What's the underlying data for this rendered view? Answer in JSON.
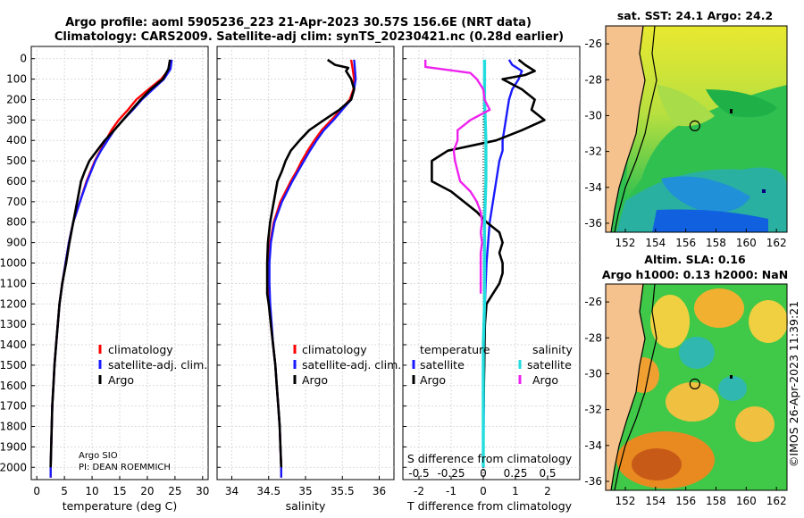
{
  "chart_data": {
    "type": "line",
    "title_line1": "Argo profile: aoml 5905236_223 21-Apr-2023 30.57S 156.6E (NRT data)",
    "title_line2": "Climatology: CARS2009. Satellite-adj clim: synTS_20230421.nc (0.28d earlier)",
    "depth_ticks": [
      "0",
      "100",
      "200",
      "300",
      "400",
      "500",
      "600",
      "700",
      "800",
      "900",
      "1000",
      "1100",
      "1200",
      "1300",
      "1400",
      "1500",
      "1600",
      "1700",
      "1800",
      "1900",
      "2000"
    ],
    "colors": {
      "red": "#ff0000",
      "blue": "#1a1aff",
      "black": "#000000",
      "cyan": "#22dddd",
      "magenta": "#ee22ee",
      "land": "#f5c28e"
    },
    "panels": [
      {
        "id": "temperature",
        "xlabel": "temperature (deg C)",
        "xlim": [
          -1,
          31
        ],
        "xticks": [
          "0",
          "5",
          "10",
          "15",
          "20",
          "25",
          "30"
        ],
        "xtick_values": [
          0,
          5,
          10,
          15,
          20,
          25,
          30
        ],
        "legend": [
          "climatology",
          "satellite-adj. clim.",
          "Argo"
        ],
        "note": [
          "Argo SIO",
          "PI: DEAN ROEMMICH"
        ],
        "series": [
          {
            "name": "climatology",
            "color": "red",
            "depth": [
              5,
              50,
              100,
              150,
              200,
              250,
              300,
              350,
              400,
              450,
              500,
              600,
              700,
              800,
              900,
              1000,
              1100,
              1200,
              1300,
              1400,
              1500,
              1600,
              1700,
              1800,
              1900,
              2000,
              2050
            ],
            "values": [
              24.3,
              24.0,
              22.5,
              20.2,
              18.0,
              16.5,
              14.8,
              13.5,
              12.5,
              11.5,
              10.5,
              9.0,
              7.8,
              6.6,
              5.8,
              5.2,
              4.6,
              4.1,
              3.8,
              3.5,
              3.2,
              3.0,
              2.8,
              2.7,
              2.6,
              2.5,
              2.5
            ]
          },
          {
            "name": "satellite-adj. clim.",
            "color": "blue",
            "depth": [
              5,
              50,
              100,
              150,
              200,
              250,
              300,
              350,
              400,
              450,
              500,
              600,
              700,
              800,
              900,
              1000,
              1100,
              1200,
              1300,
              1400,
              1500,
              1600,
              1700,
              1800,
              1900,
              2000,
              2050
            ],
            "values": [
              24.4,
              24.2,
              23.0,
              21.0,
              19.0,
              17.4,
              15.6,
              14.0,
              12.8,
              11.6,
              10.6,
              9.1,
              7.8,
              6.6,
              5.8,
              5.2,
              4.6,
              4.1,
              3.8,
              3.5,
              3.2,
              3.0,
              2.8,
              2.7,
              2.6,
              2.5,
              2.5
            ]
          },
          {
            "name": "Argo",
            "color": "black",
            "depth": [
              5,
              50,
              100,
              150,
              200,
              250,
              300,
              350,
              400,
              450,
              500,
              550,
              600,
              700,
              800,
              900,
              1000,
              1100,
              1200,
              1300,
              1400,
              1500,
              1600,
              1700,
              1800,
              1900,
              2000
            ],
            "values": [
              24.1,
              23.8,
              22.8,
              20.6,
              18.8,
              17.2,
              15.6,
              14.0,
              12.3,
              10.9,
              9.5,
              8.7,
              8.0,
              7.3,
              6.6,
              5.9,
              5.3,
              4.6,
              4.1,
              3.8,
              3.5,
              3.2,
              3.0,
              2.8,
              2.7,
              2.6,
              2.5
            ]
          }
        ]
      },
      {
        "id": "salinity",
        "xlabel": "salinity",
        "xlim": [
          33.8,
          36.2
        ],
        "xticks": [
          "34",
          "34.5",
          "35",
          "35.5",
          "36"
        ],
        "xtick_values": [
          34,
          34.5,
          35,
          35.5,
          36
        ],
        "legend": [
          "climatology",
          "satellite-adj. clim.",
          "Argo"
        ],
        "series": [
          {
            "name": "climatology",
            "color": "red",
            "depth": [
              5,
              50,
              100,
              150,
              200,
              250,
              300,
              350,
              400,
              450,
              500,
              550,
              600,
              700,
              800,
              900,
              1000,
              1100,
              1200,
              1300,
              1400,
              1500,
              1600,
              1700,
              1800,
              1900,
              2000,
              2050
            ],
            "values": [
              35.62,
              35.64,
              35.66,
              35.65,
              35.6,
              35.48,
              35.35,
              35.22,
              35.12,
              35.03,
              34.95,
              34.88,
              34.8,
              34.66,
              34.57,
              34.52,
              34.5,
              34.5,
              34.51,
              34.53,
              34.56,
              34.59,
              34.61,
              34.63,
              34.65,
              34.66,
              34.67,
              34.67
            ]
          },
          {
            "name": "satellite-adj. clim.",
            "color": "blue",
            "depth": [
              5,
              50,
              100,
              150,
              200,
              250,
              300,
              350,
              400,
              450,
              500,
              550,
              600,
              700,
              800,
              900,
              1000,
              1100,
              1200,
              1300,
              1400,
              1500,
              1600,
              1700,
              1800,
              1900,
              2000,
              2050
            ],
            "values": [
              35.66,
              35.67,
              35.68,
              35.66,
              35.62,
              35.5,
              35.38,
              35.25,
              35.15,
              35.06,
              34.98,
              34.9,
              34.82,
              34.68,
              34.58,
              34.53,
              34.51,
              34.51,
              34.52,
              34.54,
              34.56,
              34.59,
              34.61,
              34.63,
              34.65,
              34.66,
              34.67,
              34.67
            ]
          },
          {
            "name": "Argo",
            "color": "black",
            "depth": [
              5,
              30,
              45,
              60,
              100,
              150,
              200,
              250,
              300,
              350,
              400,
              450,
              500,
              550,
              600,
              700,
              800,
              900,
              1000,
              1100,
              1150,
              1200,
              1300,
              1400,
              1500,
              1600,
              1700,
              1800,
              1900,
              2000
            ],
            "values": [
              35.3,
              35.4,
              35.58,
              35.55,
              35.62,
              35.66,
              35.62,
              35.46,
              35.25,
              35.05,
              34.92,
              34.8,
              34.73,
              34.68,
              34.62,
              34.57,
              34.52,
              34.49,
              34.48,
              34.48,
              34.48,
              34.5,
              34.53,
              34.56,
              34.59,
              34.61,
              34.63,
              34.65,
              34.66,
              34.67
            ]
          }
        ]
      },
      {
        "id": "difference",
        "xlabel": "T difference from climatology",
        "xlabel_top": "S difference from climatology",
        "xlim": [
          -2.5,
          3
        ],
        "xticks": [
          "-2",
          "-1",
          "0",
          "1",
          "2"
        ],
        "xtick_values": [
          -2,
          -1,
          0,
          1,
          2
        ],
        "top_ticks": [
          "-0.5",
          "-0.25",
          "0",
          "0.25",
          "0.5"
        ],
        "top_tick_values": [
          -0.5,
          -0.25,
          0,
          0.25,
          0.5
        ],
        "legend_headers": [
          "temperature",
          "salinity"
        ],
        "legend_left": [
          "satellite",
          "Argo"
        ],
        "legend_right": [
          "satellite",
          "Argo"
        ],
        "series": [
          {
            "name": "temperature satellite",
            "color": "blue",
            "depth": [
              5,
              30,
              60,
              100,
              150,
              200,
              300,
              400,
              450,
              500,
              600,
              700,
              800,
              1000,
              1200,
              1400,
              1600,
              1800,
              2000
            ],
            "values": [
              0.8,
              0.9,
              1.2,
              1.1,
              0.9,
              0.8,
              0.7,
              0.6,
              0.6,
              0.5,
              0.4,
              0.3,
              0.2,
              0.1,
              0.05,
              0.03,
              0.02,
              0.01,
              0.0
            ]
          },
          {
            "name": "temperature Argo",
            "color": "black",
            "depth": [
              5,
              30,
              60,
              80,
              100,
              150,
              200,
              250,
              300,
              350,
              400,
              450,
              500,
              550,
              600,
              650,
              700,
              750,
              800,
              850,
              900,
              950,
              1000,
              1050,
              1100,
              1150,
              1200,
              1300,
              1400,
              1500,
              1600,
              1700,
              1800,
              1900,
              2000
            ],
            "values": [
              1.1,
              1.3,
              1.6,
              1.3,
              0.6,
              1.2,
              1.6,
              1.5,
              1.9,
              1.2,
              0.4,
              -1.1,
              -1.6,
              -1.6,
              -1.6,
              -1.0,
              -0.6,
              -0.2,
              0.1,
              0.5,
              0.6,
              0.5,
              0.6,
              0.6,
              0.5,
              0.3,
              0.1,
              0.05,
              0.04,
              0.03,
              0.02,
              0.01,
              0.0,
              0.0,
              0.0
            ]
          },
          {
            "name": "salinity satellite",
            "color": "cyan",
            "depth": [
              5,
              100,
              200,
              400,
              600,
              800,
              1000,
              1200,
              1400,
              1600,
              1800,
              2000
            ],
            "values": [
              0.01,
              0.01,
              0.01,
              0.02,
              0.02,
              0.01,
              0.01,
              0.01,
              0.0,
              0.0,
              0.0,
              0.0
            ]
          },
          {
            "name": "salinity Argo",
            "color": "magenta",
            "depth": [
              5,
              40,
              70,
              100,
              150,
              200,
              250,
              300,
              350,
              400,
              450,
              500,
              550,
              600,
              650,
              700,
              750,
              800,
              850,
              900,
              950,
              1000,
              1100,
              1150
            ],
            "values": [
              -0.45,
              -0.45,
              -0.1,
              -0.05,
              0.0,
              0.01,
              0.05,
              -0.1,
              -0.2,
              -0.2,
              -0.23,
              -0.22,
              -0.2,
              -0.18,
              -0.1,
              -0.05,
              -0.02,
              -0.01,
              -0.02,
              -0.01,
              -0.02,
              -0.02,
              -0.02,
              -0.02
            ]
          }
        ]
      }
    ],
    "maps": [
      {
        "title": "sat. SST: 24.1 Argo: 24.2",
        "lon_ticks": [
          "152",
          "154",
          "156",
          "158",
          "160",
          "162"
        ],
        "lon_tick_values": [
          152,
          154,
          156,
          158,
          160,
          162
        ],
        "lat_ticks": [
          "-26",
          "-28",
          "-30",
          "-32",
          "-34",
          "-36"
        ],
        "lat_tick_values": [
          -26,
          -28,
          -30,
          -32,
          -34,
          -36
        ],
        "lon_range": [
          150.7,
          162.7
        ],
        "lat_range": [
          -36.5,
          -25.0
        ],
        "float_pos": [
          156.6,
          -30.57
        ]
      },
      {
        "title_line1": "Altim. SLA: 0.16",
        "title_line2": "Argo h1000: 0.13 h2000: NaN",
        "lon_ticks": [
          "152",
          "154",
          "156",
          "158",
          "160",
          "162"
        ],
        "lon_tick_values": [
          152,
          154,
          156,
          158,
          160,
          162
        ],
        "lat_ticks": [
          "-26",
          "-28",
          "-30",
          "-32",
          "-34",
          "-36"
        ],
        "lat_tick_values": [
          -26,
          -28,
          -30,
          -32,
          -34,
          -36
        ],
        "lon_range": [
          150.7,
          162.7
        ],
        "lat_range": [
          -36.5,
          -25.0
        ],
        "float_pos": [
          156.6,
          -30.57
        ]
      }
    ],
    "watermark": "©IMOS 26-Apr-2023 11:39:21"
  }
}
